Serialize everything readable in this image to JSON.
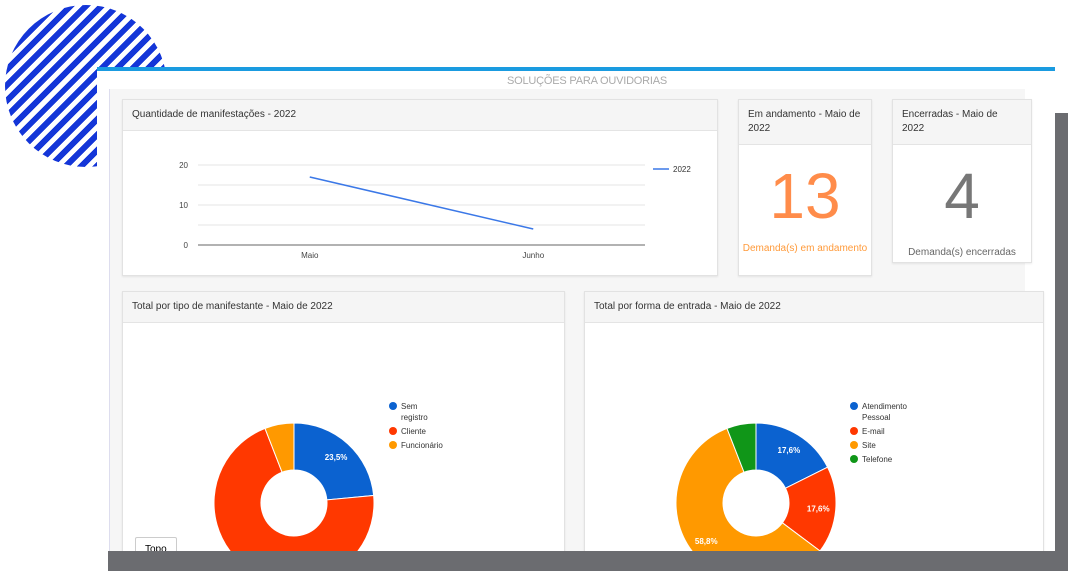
{
  "header": {
    "brand": "SOLUÇÕES PARA OUVIDORIAS"
  },
  "line_card": {
    "title": "Quantidade de manifestações - 2022"
  },
  "progress_card": {
    "title": "Em andamento - Maio de 2022",
    "value": "13",
    "caption": "Demanda(s) em andamento"
  },
  "closed_card": {
    "title": "Encerradas - Maio de 2022",
    "value": "4",
    "caption": "Demanda(s) encerradas"
  },
  "pie1_card": {
    "title": "Total por tipo de manifestante - Maio de 2022"
  },
  "pie2_card": {
    "title": "Total por forma de entrada - Maio de 2022"
  },
  "top_button": "Topo",
  "chart_data": [
    {
      "type": "line",
      "title": "Quantidade de manifestações - 2022",
      "categories": [
        "Maio",
        "Junho"
      ],
      "series": [
        {
          "name": "2022",
          "values": [
            17,
            4
          ],
          "color": "#3b78e7"
        }
      ],
      "ylim": [
        0,
        20
      ],
      "yticks": [
        "0",
        "10",
        "20"
      ],
      "legend": "right"
    },
    {
      "type": "pie",
      "title": "Total por tipo de manifestante - Maio de 2022",
      "labels": [
        "Sem registro",
        "Cliente",
        "Funcionário"
      ],
      "values": [
        23.5,
        70.6,
        5.9
      ],
      "value_labels": [
        "23,5%",
        "70,6%",
        ""
      ],
      "colors": [
        "#0b62d0",
        "#ff3800",
        "#ff9900"
      ],
      "legend": "right"
    },
    {
      "type": "pie",
      "title": "Total por forma de entrada - Maio de 2022",
      "labels": [
        "Atendimento Pessoal",
        "E-mail",
        "Site",
        "Telefone"
      ],
      "values": [
        17.6,
        17.6,
        58.8,
        5.9
      ],
      "value_labels": [
        "17,6%",
        "17,6%",
        "58,8%",
        ""
      ],
      "colors": [
        "#0b62d0",
        "#ff3800",
        "#ff9900",
        "#109618"
      ],
      "legend": "right"
    }
  ]
}
